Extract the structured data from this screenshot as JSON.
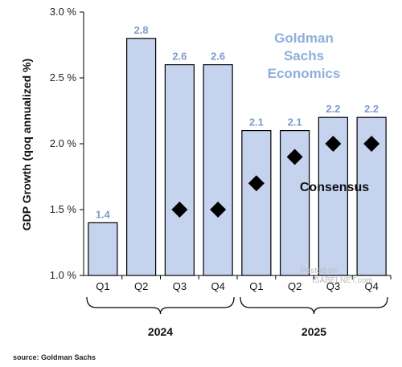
{
  "chart_data": {
    "type": "bar",
    "categories": [
      "Q1",
      "Q2",
      "Q3",
      "Q4",
      "Q1",
      "Q2",
      "Q3",
      "Q4"
    ],
    "year_groups": [
      {
        "label": "2024",
        "from": 0,
        "to": 3
      },
      {
        "label": "2025",
        "from": 4,
        "to": 7
      }
    ],
    "series": [
      {
        "name": "Goldman Sachs Economics",
        "kind": "bar",
        "color": "#c5d3ef",
        "values": [
          1.4,
          2.8,
          2.6,
          2.6,
          2.1,
          2.1,
          2.2,
          2.2
        ],
        "labels": [
          "1.4",
          "2.8",
          "2.6",
          "2.6",
          "2.1",
          "2.1",
          "2.2",
          "2.2"
        ]
      },
      {
        "name": "Consensus",
        "kind": "diamond",
        "color": "#000000",
        "values": [
          null,
          null,
          1.5,
          1.5,
          1.7,
          1.9,
          2.0,
          2.0
        ]
      }
    ],
    "ylabel": "GDP Growth (qoq annualized %)",
    "ylim": [
      1.0,
      3.0
    ],
    "yticks": [
      {
        "value": 1.0,
        "label": "1.0 %"
      },
      {
        "value": 1.5,
        "label": "1.5 %"
      },
      {
        "value": 2.0,
        "label": "2.0 %"
      },
      {
        "value": 2.5,
        "label": "2.5 %"
      },
      {
        "value": 3.0,
        "label": "3.0 %"
      }
    ],
    "annotations": {
      "goldman_lines": [
        "Goldman",
        "Sachs",
        "Economics"
      ],
      "consensus": "Consensus"
    },
    "watermark": [
      "Posted on",
      "ISABELNET.com"
    ],
    "grid": false
  },
  "source": "source: Goldman Sachs"
}
